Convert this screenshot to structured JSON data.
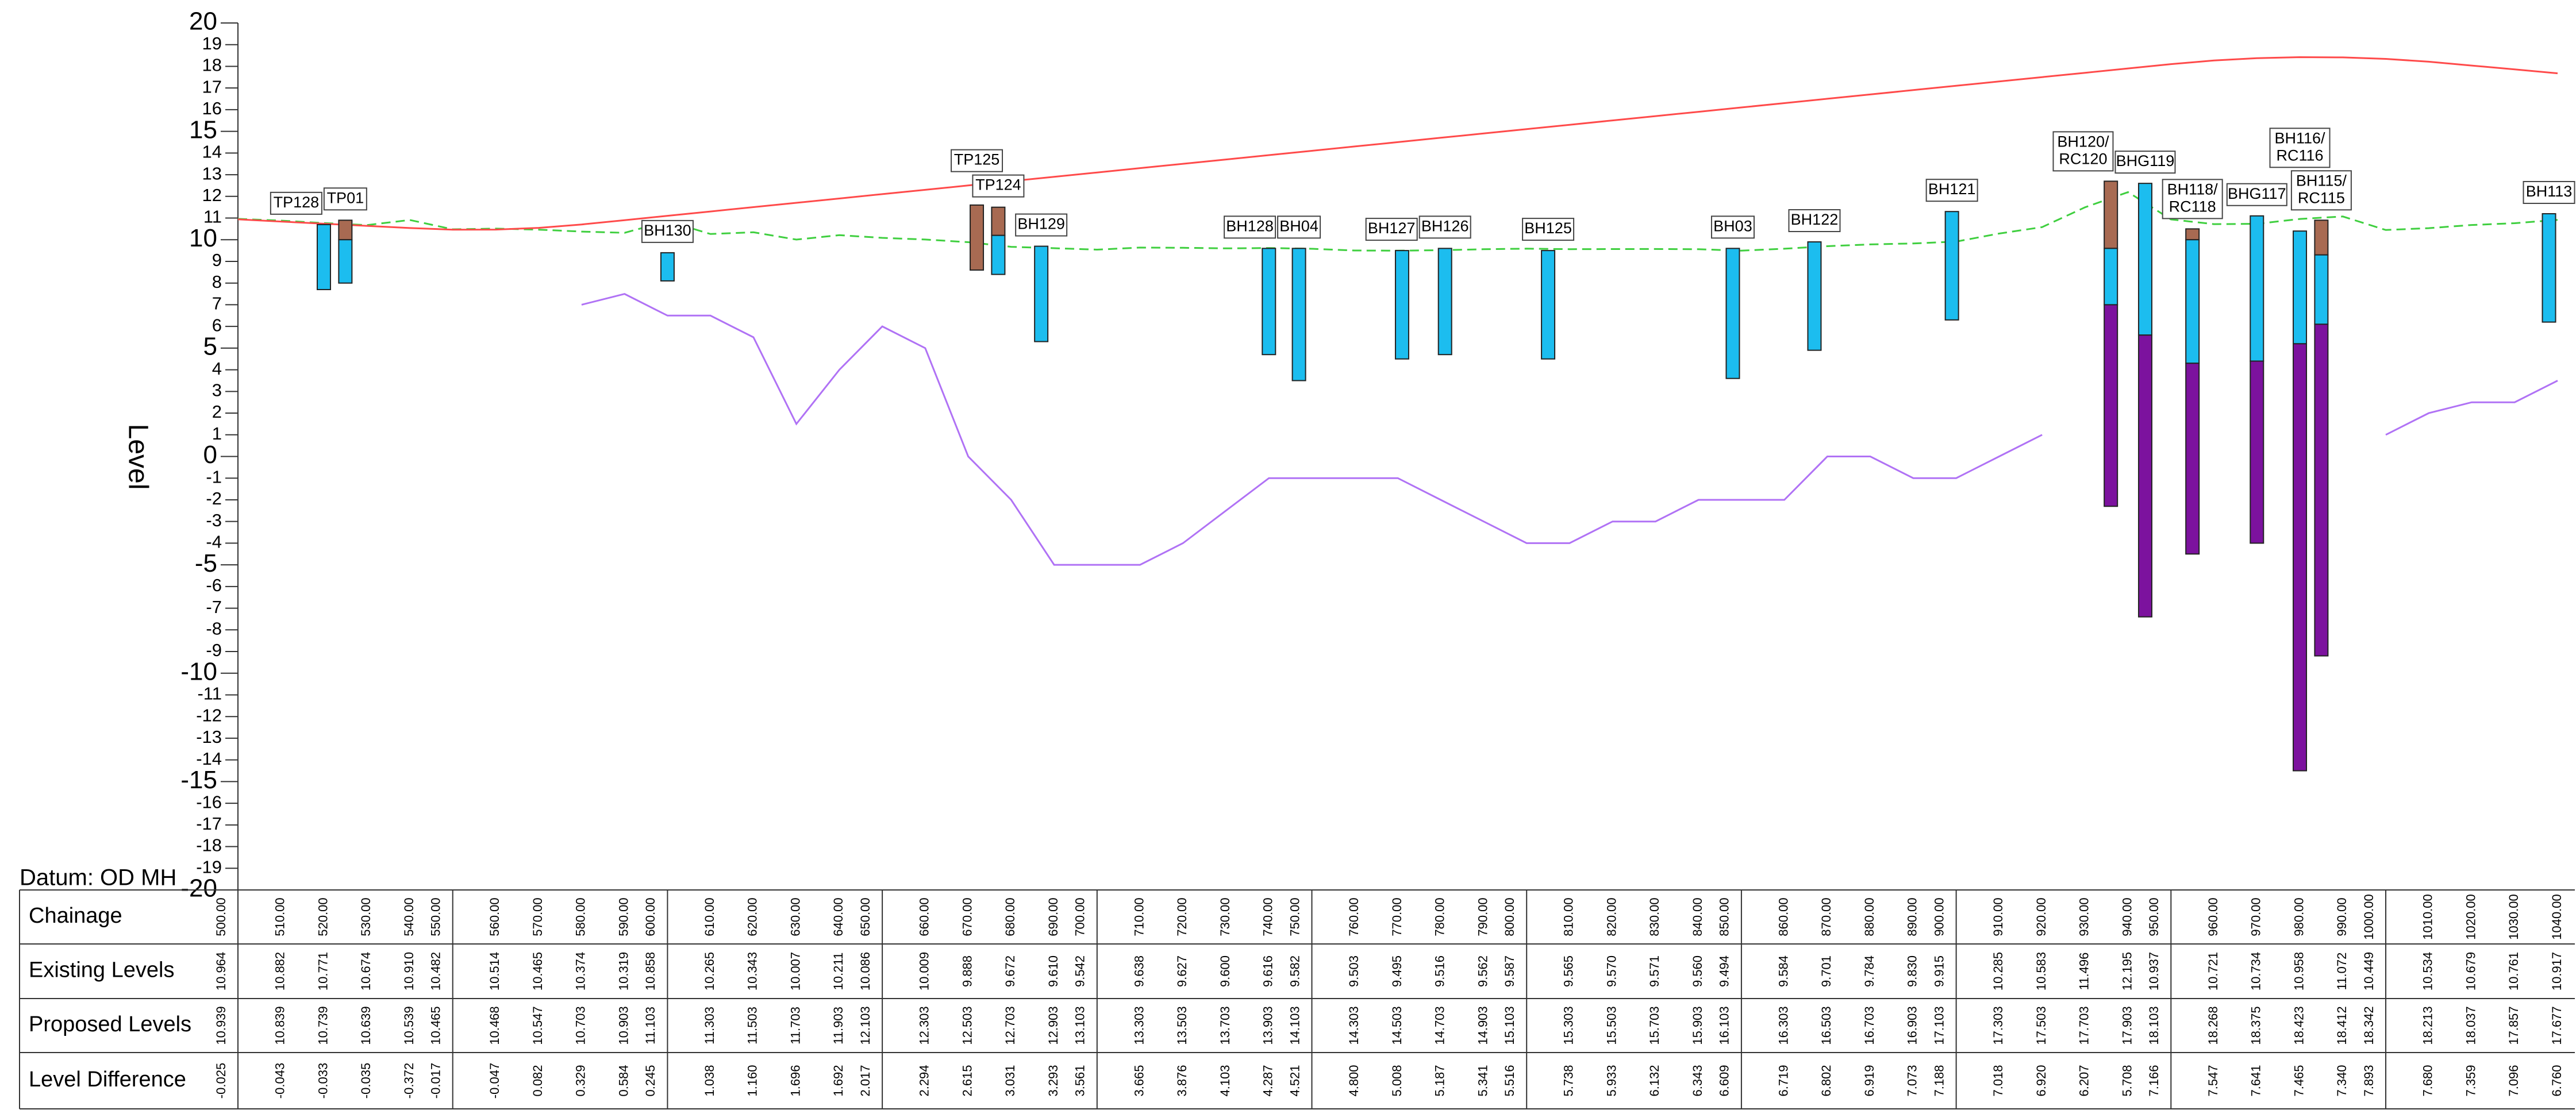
{
  "chart_data": {
    "type": "line",
    "y_label": "Level",
    "datum": "Datum: OD MH",
    "ylim": [
      -20,
      20
    ],
    "yticks": [
      -20,
      -19,
      -18,
      -17,
      -16,
      -15,
      -14,
      -13,
      -12,
      -11,
      -10,
      -9,
      -8,
      -7,
      -6,
      -5,
      -4,
      -3,
      -2,
      -1,
      0,
      1,
      2,
      3,
      4,
      5,
      6,
      7,
      8,
      9,
      10,
      11,
      12,
      13,
      14,
      15,
      16,
      17,
      18,
      19,
      20
    ],
    "xlim": [
      500,
      1044
    ],
    "x_name": "Chainage",
    "x": [
      500,
      510,
      520,
      530,
      540,
      550,
      560,
      570,
      580,
      590,
      600,
      610,
      620,
      630,
      640,
      650,
      660,
      670,
      680,
      690,
      700,
      710,
      720,
      730,
      740,
      750,
      760,
      770,
      780,
      790,
      800,
      810,
      820,
      830,
      840,
      850,
      860,
      870,
      880,
      890,
      900,
      910,
      920,
      930,
      940,
      950,
      960,
      970,
      980,
      990,
      1000,
      1010,
      1020,
      1030,
      1040
    ],
    "x_labels": [
      "500.00",
      "510.00",
      "520.00",
      "530.00",
      "540.00",
      "550.00",
      "560.00",
      "570.00",
      "580.00",
      "590.00",
      "600.00",
      "610.00",
      "620.00",
      "630.00",
      "640.00",
      "650.00",
      "660.00",
      "670.00",
      "680.00",
      "690.00",
      "700.00",
      "710.00",
      "720.00",
      "730.00",
      "740.00",
      "750.00",
      "760.00",
      "770.00",
      "780.00",
      "790.00",
      "800.00",
      "810.00",
      "820.00",
      "830.00",
      "840.00",
      "850.00",
      "860.00",
      "870.00",
      "880.00",
      "890.00",
      "900.00",
      "910.00",
      "920.00",
      "930.00",
      "940.00",
      "950.00",
      "960.00",
      "970.00",
      "980.00",
      "990.00",
      "1000.00",
      "1010.00",
      "1020.00",
      "1030.00",
      "1040.00"
    ],
    "series": [
      {
        "name": "Existing Levels",
        "color": "#3fcf3f",
        "dashed": true,
        "values": [
          10.964,
          10.882,
          10.771,
          10.674,
          10.91,
          10.482,
          10.514,
          10.465,
          10.374,
          10.319,
          10.858,
          10.265,
          10.343,
          10.007,
          10.211,
          10.086,
          10.009,
          9.888,
          9.672,
          9.61,
          9.542,
          9.638,
          9.627,
          9.6,
          9.616,
          9.582,
          9.503,
          9.495,
          9.516,
          9.562,
          9.587,
          9.565,
          9.57,
          9.571,
          9.56,
          9.494,
          9.584,
          9.701,
          9.784,
          9.83,
          9.915,
          10.285,
          10.583,
          11.496,
          12.195,
          10.937,
          10.721,
          10.734,
          10.958,
          11.072,
          10.449,
          10.534,
          10.679,
          10.761,
          10.917
        ],
        "value_labels": [
          "10.964",
          "10.882",
          "10.771",
          "10.674",
          "10.910",
          "10.482",
          "10.514",
          "10.465",
          "10.374",
          "10.319",
          "10.858",
          "10.265",
          "10.343",
          "10.007",
          "10.211",
          "10.086",
          "10.009",
          "9.888",
          "9.672",
          "9.610",
          "9.542",
          "9.638",
          "9.627",
          "9.600",
          "9.616",
          "9.582",
          "9.503",
          "9.495",
          "9.516",
          "9.562",
          "9.587",
          "9.565",
          "9.570",
          "9.571",
          "9.560",
          "9.494",
          "9.584",
          "9.701",
          "9.784",
          "9.830",
          "9.915",
          "10.285",
          "10.583",
          "11.496",
          "12.195",
          "10.937",
          "10.721",
          "10.734",
          "10.958",
          "11.072",
          "10.449",
          "10.534",
          "10.679",
          "10.761",
          "10.917"
        ]
      },
      {
        "name": "Proposed Levels",
        "color": "#ff4a4a",
        "dashed": false,
        "values": [
          10.939,
          10.839,
          10.739,
          10.639,
          10.539,
          10.465,
          10.468,
          10.547,
          10.703,
          10.903,
          11.103,
          11.303,
          11.503,
          11.703,
          11.903,
          12.103,
          12.303,
          12.503,
          12.703,
          12.903,
          13.103,
          13.303,
          13.503,
          13.703,
          13.903,
          14.103,
          14.303,
          14.503,
          14.703,
          14.903,
          15.103,
          15.303,
          15.503,
          15.703,
          15.903,
          16.103,
          16.303,
          16.503,
          16.703,
          16.903,
          17.103,
          17.303,
          17.503,
          17.703,
          17.903,
          18.103,
          18.268,
          18.375,
          18.423,
          18.412,
          18.342,
          18.213,
          18.037,
          17.857,
          17.677
        ],
        "value_labels": [
          "10.939",
          "10.839",
          "10.739",
          "10.639",
          "10.539",
          "10.465",
          "10.468",
          "10.547",
          "10.703",
          "10.903",
          "11.103",
          "11.303",
          "11.503",
          "11.703",
          "11.903",
          "12.103",
          "12.303",
          "12.503",
          "12.703",
          "12.903",
          "13.103",
          "13.303",
          "13.503",
          "13.703",
          "13.903",
          "14.103",
          "14.303",
          "14.503",
          "14.703",
          "14.903",
          "15.103",
          "15.303",
          "15.503",
          "15.703",
          "15.903",
          "16.103",
          "16.303",
          "16.503",
          "16.703",
          "16.903",
          "17.103",
          "17.303",
          "17.503",
          "17.703",
          "17.903",
          "18.103",
          "18.268",
          "18.375",
          "18.423",
          "18.412",
          "18.342",
          "18.213",
          "18.037",
          "17.857",
          "17.677"
        ]
      },
      {
        "color": "#b072f5",
        "dashed": false,
        "x": [
          580,
          590,
          600,
          610,
          620,
          630,
          640,
          650,
          660,
          670,
          680,
          690,
          700,
          710,
          720,
          730,
          740,
          750,
          760,
          770,
          780,
          790,
          800,
          810,
          820,
          830,
          840,
          850,
          860,
          870,
          880,
          890,
          900,
          910,
          920,
          960,
          1000,
          1010,
          1020,
          1030,
          1040
        ],
        "values": [
          7.0,
          7.5,
          6.5,
          6.5,
          5.5,
          1.5,
          4.0,
          6.0,
          5.0,
          0.0,
          -2.0,
          -5.0,
          -5.0,
          -5.0,
          -4.0,
          -2.5,
          -1.0,
          -1.0,
          -1.0,
          -1.0,
          -2.0,
          -3.0,
          -4.0,
          -4.0,
          -3.0,
          -3.0,
          -2.0,
          -2.0,
          -2.0,
          0.0,
          0.0,
          -1.0,
          -1.0,
          0.0,
          1.0,
          null,
          1.0,
          2.0,
          2.5,
          2.5,
          3.5
        ]
      }
    ],
    "level_difference": {
      "name": "Level Difference",
      "values": [
        -0.025,
        -0.043,
        -0.033,
        -0.035,
        -0.372,
        -0.017,
        -0.047,
        0.082,
        0.329,
        0.584,
        0.245,
        1.038,
        1.16,
        1.696,
        1.692,
        2.017,
        2.294,
        2.615,
        3.031,
        3.293,
        3.561,
        3.665,
        3.876,
        4.103,
        4.287,
        4.521,
        4.8,
        5.008,
        5.187,
        5.341,
        5.516,
        5.738,
        5.933,
        6.132,
        6.343,
        6.609,
        6.719,
        6.802,
        6.919,
        7.073,
        7.188,
        7.018,
        6.92,
        6.207,
        5.708,
        7.166,
        7.547,
        7.641,
        7.465,
        7.34,
        7.893,
        7.68,
        7.359,
        7.096,
        6.76
      ],
      "value_labels": [
        "-0.025",
        "-0.043",
        "-0.033",
        "-0.035",
        "-0.372",
        "-0.017",
        "-0.047",
        "0.082",
        "0.329",
        "0.584",
        "0.245",
        "1.038",
        "1.160",
        "1.696",
        "1.692",
        "2.017",
        "2.294",
        "2.615",
        "3.031",
        "3.293",
        "3.561",
        "3.665",
        "3.876",
        "4.103",
        "4.287",
        "4.521",
        "4.800",
        "5.008",
        "5.187",
        "5.341",
        "5.516",
        "5.738",
        "5.933",
        "6.132",
        "6.343",
        "6.609",
        "6.719",
        "6.802",
        "6.919",
        "7.073",
        "7.188",
        "7.018",
        "6.920",
        "6.207",
        "5.708",
        "7.166",
        "7.547",
        "7.641",
        "7.465",
        "7.340",
        "7.893",
        "7.680",
        "7.359",
        "7.096",
        "6.760"
      ]
    },
    "boreholes": [
      {
        "label": [
          "TP128"
        ],
        "x": 520,
        "segments": [
          {
            "color": "#1cbdef",
            "top": 10.7,
            "bottom": 7.7
          }
        ]
      },
      {
        "label": [
          "TP01"
        ],
        "x": 525,
        "segments": [
          {
            "color": "#a86a52",
            "top": 10.9,
            "bottom": 10.0
          },
          {
            "color": "#1cbdef",
            "top": 10.0,
            "bottom": 8.0
          }
        ]
      },
      {
        "label": [
          "BH130"
        ],
        "x": 600,
        "segments": [
          {
            "color": "#1cbdef",
            "top": 9.4,
            "bottom": 8.1
          }
        ]
      },
      {
        "label": [
          "TP125"
        ],
        "x": 672,
        "segments": [
          {
            "color": "#a86a52",
            "top": 11.6,
            "bottom": 8.6
          }
        ]
      },
      {
        "label": [
          "TP124"
        ],
        "x": 677,
        "segments": [
          {
            "color": "#a86a52",
            "top": 11.5,
            "bottom": 10.2
          },
          {
            "color": "#1cbdef",
            "top": 10.2,
            "bottom": 8.4
          }
        ]
      },
      {
        "label": [
          "BH129"
        ],
        "x": 687,
        "segments": [
          {
            "color": "#1cbdef",
            "top": 9.7,
            "bottom": 5.3
          }
        ]
      },
      {
        "label": [
          "BH128"
        ],
        "x": 740,
        "segments": [
          {
            "color": "#1cbdef",
            "top": 9.6,
            "bottom": 4.7
          }
        ]
      },
      {
        "label": [
          "BH04"
        ],
        "x": 747,
        "segments": [
          {
            "color": "#1cbdef",
            "top": 9.6,
            "bottom": 3.5
          }
        ]
      },
      {
        "label": [
          "BH127"
        ],
        "x": 771,
        "segments": [
          {
            "color": "#1cbdef",
            "top": 9.5,
            "bottom": 4.5
          }
        ]
      },
      {
        "label": [
          "BH126"
        ],
        "x": 781,
        "segments": [
          {
            "color": "#1cbdef",
            "top": 9.6,
            "bottom": 4.7
          }
        ]
      },
      {
        "label": [
          "BH125"
        ],
        "x": 805,
        "segments": [
          {
            "color": "#1cbdef",
            "top": 9.5,
            "bottom": 4.5
          }
        ]
      },
      {
        "label": [
          "BH03"
        ],
        "x": 848,
        "segments": [
          {
            "color": "#1cbdef",
            "top": 9.6,
            "bottom": 3.6
          }
        ]
      },
      {
        "label": [
          "BH122"
        ],
        "x": 867,
        "segments": [
          {
            "color": "#1cbdef",
            "top": 9.9,
            "bottom": 4.9
          }
        ]
      },
      {
        "label": [
          "BH121"
        ],
        "x": 899,
        "segments": [
          {
            "color": "#1cbdef",
            "top": 11.3,
            "bottom": 6.3
          }
        ]
      },
      {
        "label": [
          "BH120/",
          "RC120"
        ],
        "x": 936,
        "segments": [
          {
            "color": "#a86a52",
            "top": 12.7,
            "bottom": 9.6
          },
          {
            "color": "#1cbdef",
            "top": 9.6,
            "bottom": 7.0
          },
          {
            "color": "#7c129e",
            "top": 7.0,
            "bottom": -2.3
          }
        ]
      },
      {
        "label": [
          "BHG119"
        ],
        "x": 944,
        "segments": [
          {
            "color": "#1cbdef",
            "top": 12.6,
            "bottom": 5.6
          },
          {
            "color": "#7c129e",
            "top": 5.6,
            "bottom": -7.4
          }
        ]
      },
      {
        "label": [
          "BH118/",
          "RC118"
        ],
        "x": 955,
        "segments": [
          {
            "color": "#a86a52",
            "top": 10.5,
            "bottom": 10.0
          },
          {
            "color": "#1cbdef",
            "top": 10.0,
            "bottom": 4.3
          },
          {
            "color": "#7c129e",
            "top": 4.3,
            "bottom": -4.5
          }
        ]
      },
      {
        "label": [
          "BHG117"
        ],
        "x": 970,
        "segments": [
          {
            "color": "#1cbdef",
            "top": 11.1,
            "bottom": 4.4
          },
          {
            "color": "#7c129e",
            "top": 4.4,
            "bottom": -4.0
          }
        ]
      },
      {
        "label": [
          "BH116/",
          "RC116"
        ],
        "x": 980,
        "segments": [
          {
            "color": "#1cbdef",
            "top": 10.4,
            "bottom": 5.2
          },
          {
            "color": "#7c129e",
            "top": 5.2,
            "bottom": -14.5
          }
        ]
      },
      {
        "label": [
          "BH115/",
          "RC115"
        ],
        "x": 985,
        "segments": [
          {
            "color": "#a86a52",
            "top": 10.9,
            "bottom": 9.3
          },
          {
            "color": "#1cbdef",
            "top": 9.3,
            "bottom": 6.1
          },
          {
            "color": "#7c129e",
            "top": 6.1,
            "bottom": -9.2
          }
        ]
      },
      {
        "label": [
          "BH113"
        ],
        "x": 1038,
        "segments": [
          {
            "color": "#1cbdef",
            "top": 11.2,
            "bottom": 6.2
          }
        ]
      }
    ]
  }
}
